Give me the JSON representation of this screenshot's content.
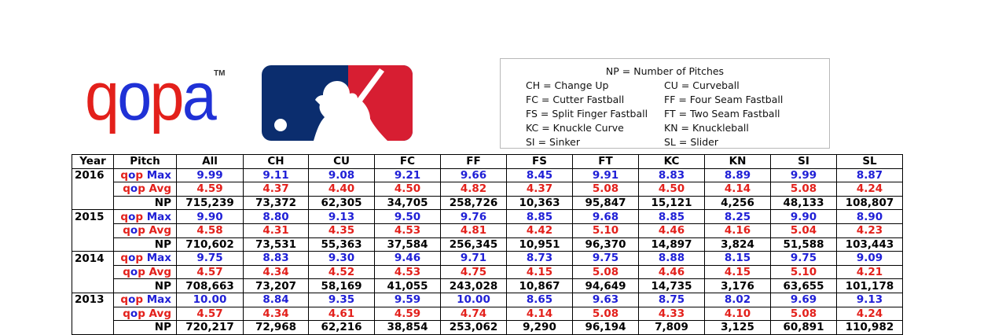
{
  "logos": {
    "qopa": {
      "q": "q",
      "o": "o",
      "p": "p",
      "a": "a",
      "tm": "TM"
    },
    "mlb": {
      "colors": {
        "blue": "#0b2d6e",
        "red": "#d71e32"
      }
    }
  },
  "legend": {
    "title": "NP = Number of Pitches",
    "items": [
      [
        "CH = Change Up",
        "CU = Curveball"
      ],
      [
        "FC = Cutter Fastball",
        "FF = Four Seam Fastball"
      ],
      [
        "FS = Split Finger Fastball",
        "FT = Two Seam Fastball"
      ],
      [
        "KC = Knuckle Curve",
        "KN = Knuckleball"
      ],
      [
        "SI = Sinker",
        "SL = Slider"
      ]
    ]
  },
  "table": {
    "headers": [
      "Year",
      "Pitch",
      "All",
      "CH",
      "CU",
      "FC",
      "FF",
      "FS",
      "FT",
      "KC",
      "KN",
      "SI",
      "SL"
    ],
    "labels": {
      "max_prefix": "qop",
      "max_suffix": " Max",
      "avg_prefix": "qop",
      "avg_suffix": " Avg",
      "np": "NP"
    },
    "years": [
      {
        "year": "2016",
        "max": [
          "9.99",
          "9.11",
          "9.08",
          "9.21",
          "9.66",
          "8.45",
          "9.91",
          "8.83",
          "8.89",
          "9.99",
          "8.87"
        ],
        "avg": [
          "4.59",
          "4.37",
          "4.40",
          "4.50",
          "4.82",
          "4.37",
          "5.08",
          "4.50",
          "4.14",
          "5.08",
          "4.24"
        ],
        "np": [
          "715,239",
          "73,372",
          "62,305",
          "34,705",
          "258,726",
          "10,363",
          "95,847",
          "15,121",
          "4,256",
          "48,133",
          "108,807"
        ]
      },
      {
        "year": "2015",
        "max": [
          "9.90",
          "8.80",
          "9.13",
          "9.50",
          "9.76",
          "8.85",
          "9.68",
          "8.85",
          "8.25",
          "9.90",
          "8.90"
        ],
        "avg": [
          "4.58",
          "4.31",
          "4.35",
          "4.53",
          "4.81",
          "4.42",
          "5.10",
          "4.46",
          "4.16",
          "5.04",
          "4.23"
        ],
        "np": [
          "710,602",
          "73,531",
          "55,363",
          "37,584",
          "256,345",
          "10,951",
          "96,370",
          "14,897",
          "3,824",
          "51,588",
          "103,443"
        ]
      },
      {
        "year": "2014",
        "max": [
          "9.75",
          "8.83",
          "9.30",
          "9.46",
          "9.71",
          "8.73",
          "9.75",
          "8.88",
          "8.15",
          "9.75",
          "9.09"
        ],
        "avg": [
          "4.57",
          "4.34",
          "4.52",
          "4.53",
          "4.75",
          "4.15",
          "5.08",
          "4.46",
          "4.15",
          "5.10",
          "4.21"
        ],
        "np": [
          "708,663",
          "73,207",
          "58,169",
          "41,055",
          "243,028",
          "10,867",
          "94,649",
          "14,735",
          "3,176",
          "63,655",
          "101,178"
        ]
      },
      {
        "year": "2013",
        "max": [
          "10.00",
          "8.84",
          "9.35",
          "9.59",
          "10.00",
          "8.65",
          "9.63",
          "8.75",
          "8.02",
          "9.69",
          "9.13"
        ],
        "avg": [
          "4.57",
          "4.34",
          "4.61",
          "4.59",
          "4.74",
          "4.14",
          "5.08",
          "4.33",
          "4.10",
          "5.08",
          "4.24"
        ],
        "np": [
          "720,217",
          "72,968",
          "62,216",
          "38,854",
          "253,062",
          "9,290",
          "96,194",
          "7,809",
          "3,125",
          "60,891",
          "110,982"
        ]
      }
    ]
  }
}
